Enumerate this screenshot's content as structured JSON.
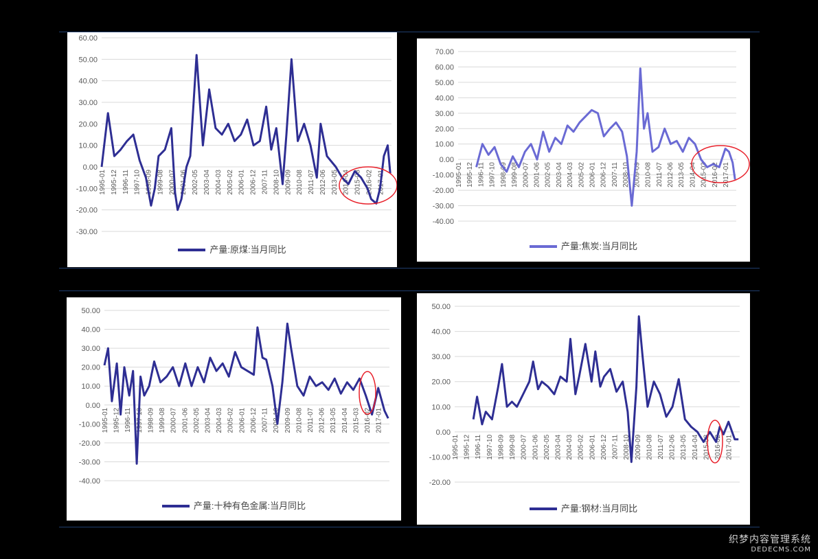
{
  "watermark": {
    "line1": "织梦内容管理系统",
    "line2": "DEDECMS.COM"
  },
  "chart_data": [
    {
      "type": "line",
      "series": [
        {
          "name": "产量:原煤:当月同比",
          "color": "#2e2e93",
          "x": [
            1995.0,
            1995.5,
            1996.0,
            1996.5,
            1997.0,
            1997.5,
            1998.0,
            1998.5,
            1998.9,
            1999.2,
            1999.5,
            2000.0,
            2000.5,
            2000.8,
            2001.0,
            2001.3,
            2001.7,
            2002.0,
            2002.5,
            2003.0,
            2003.5,
            2004.0,
            2004.5,
            2005.0,
            2005.5,
            2006.0,
            2006.5,
            2007.0,
            2007.5,
            2008.0,
            2008.4,
            2008.8,
            2009.3,
            2009.6,
            2010.0,
            2010.5,
            2011.0,
            2011.5,
            2012.0,
            2012.3,
            2012.8,
            2013.5,
            2014.0,
            2014.5,
            2015.0,
            2015.5,
            2016.0,
            2016.3,
            2016.7,
            2017.0,
            2017.3,
            2017.6,
            2017.8
          ],
          "y": [
            0,
            25,
            5,
            8,
            12,
            15,
            3,
            -5,
            -18,
            -10,
            5,
            8,
            18,
            -12,
            -20,
            -15,
            0,
            5,
            52,
            10,
            36,
            18,
            15,
            20,
            12,
            15,
            22,
            10,
            12,
            28,
            8,
            18,
            -8,
            15,
            50,
            12,
            20,
            10,
            -5,
            20,
            5,
            0,
            -5,
            -8,
            -2,
            -5,
            -10,
            -15,
            -17,
            -10,
            5,
            10,
            -3
          ]
        }
      ],
      "yticks": [
        "60.00",
        "50.00",
        "40.00",
        "30.00",
        "20.00",
        "10.00",
        "0.00",
        "-10.00",
        "-20.00",
        "-30.00"
      ],
      "xticks": [
        "1995-01",
        "1995-12",
        "1996-11",
        "1997-10",
        "1998-09",
        "1999-08",
        "2000-07",
        "2001-06",
        "2002-05",
        "2003-04",
        "2004-03",
        "2005-02",
        "2006-01",
        "2006-12",
        "2007-11",
        "2008-10",
        "2009-09",
        "2010-08",
        "2011-07",
        "2012-06",
        "2013-05",
        "2014-04",
        "2015-03",
        "2016-02",
        "2017-01"
      ],
      "ylim": [
        -30,
        60
      ],
      "annotation": "red-ellipse"
    },
    {
      "type": "line",
      "series": [
        {
          "name": "产量:焦炭:当月同比",
          "color": "#6a6ad4",
          "x": [
            1996.5,
            1997.0,
            1997.5,
            1998.0,
            1998.5,
            1999.0,
            1999.5,
            2000.0,
            2000.5,
            2001.0,
            2001.5,
            2002.0,
            2002.5,
            2003.0,
            2003.5,
            2004.0,
            2004.5,
            2005.0,
            2005.5,
            2006.0,
            2006.5,
            2007.0,
            2007.5,
            2008.0,
            2008.5,
            2008.9,
            2009.3,
            2009.7,
            2010.0,
            2010.3,
            2010.6,
            2011.0,
            2011.5,
            2012.0,
            2012.5,
            2013.0,
            2013.5,
            2014.0,
            2014.5,
            2015.0,
            2015.5,
            2016.0,
            2016.5,
            2017.0,
            2017.3,
            2017.6,
            2017.8
          ],
          "y": [
            -5,
            10,
            3,
            8,
            -3,
            -8,
            2,
            -5,
            5,
            10,
            0,
            18,
            5,
            14,
            10,
            22,
            18,
            24,
            28,
            32,
            30,
            15,
            20,
            24,
            18,
            2,
            -30,
            5,
            59,
            20,
            30,
            5,
            8,
            20,
            10,
            12,
            5,
            14,
            10,
            0,
            -5,
            -3,
            -5,
            7,
            5,
            -2,
            -13
          ]
        }
      ],
      "yticks": [
        "70.00",
        "60.00",
        "50.00",
        "40.00",
        "30.00",
        "20.00",
        "10.00",
        "0.00",
        "-10.00",
        "-20.00",
        "-30.00",
        "-40.00"
      ],
      "xticks": [
        "1995-01",
        "1995-12",
        "1996-11",
        "1997-10",
        "1998-09",
        "1999-08",
        "2000-07",
        "2001-06",
        "2002-05",
        "2003-04",
        "2004-03",
        "2005-02",
        "2006-01",
        "2006-12",
        "2007-11",
        "2008-10",
        "2009-09",
        "2010-08",
        "2011-07",
        "2012-06",
        "2013-05",
        "2014-04",
        "2015-03",
        "2016-02",
        "2017-01"
      ],
      "ylim": [
        -40,
        70
      ],
      "annotation": "red-ellipse"
    },
    {
      "type": "line",
      "series": [
        {
          "name": "产量:十种有色金属:当月同比",
          "color": "#2e2e93",
          "x": [
            1995.0,
            1995.3,
            1995.6,
            1996.0,
            1996.3,
            1996.6,
            1997.0,
            1997.3,
            1997.6,
            1997.9,
            1998.2,
            1998.6,
            1999.0,
            1999.5,
            2000.0,
            2000.5,
            2001.0,
            2001.5,
            2002.0,
            2002.5,
            2003.0,
            2003.5,
            2004.0,
            2004.5,
            2005.0,
            2005.5,
            2006.0,
            2006.5,
            2007.0,
            2007.3,
            2007.7,
            2008.0,
            2008.5,
            2008.9,
            2009.3,
            2009.7,
            2010.0,
            2010.5,
            2011.0,
            2011.5,
            2012.0,
            2012.5,
            2013.0,
            2013.5,
            2014.0,
            2014.5,
            2015.0,
            2015.5,
            2016.0,
            2016.5,
            2017.0,
            2017.5,
            2017.8
          ],
          "y": [
            21,
            30,
            2,
            22,
            -5,
            20,
            5,
            18,
            -31,
            15,
            5,
            10,
            23,
            12,
            15,
            20,
            10,
            22,
            10,
            20,
            12,
            25,
            18,
            22,
            15,
            28,
            20,
            18,
            16,
            41,
            25,
            24,
            10,
            -10,
            12,
            43,
            30,
            10,
            5,
            15,
            10,
            12,
            8,
            14,
            6,
            12,
            8,
            14,
            5,
            -5,
            9,
            -3,
            -7
          ]
        }
      ],
      "yticks": [
        "50.00",
        "40.00",
        "30.00",
        "20.00",
        "10.00",
        "0.00",
        "-10.00",
        "-20.00",
        "-30.00",
        "-40.00"
      ],
      "xticks": [
        "1995-01",
        "1995-12",
        "1996-11",
        "1997-10",
        "1998-09",
        "1999-08",
        "2000-07",
        "2001-06",
        "2002-05",
        "2003-04",
        "2004-03",
        "2005-02",
        "2006-01",
        "2006-12",
        "2007-11",
        "2008-10",
        "2009-09",
        "2010-08",
        "2011-07",
        "2012-06",
        "2013-05",
        "2014-04",
        "2015-03",
        "2016-02",
        "2017-01"
      ],
      "ylim": [
        -40,
        50
      ],
      "annotation": "red-ellipse"
    },
    {
      "type": "line",
      "series": [
        {
          "name": "产量:钢材:当月同比",
          "color": "#2e2e93",
          "x": [
            1996.5,
            1996.8,
            1997.2,
            1997.5,
            1998.0,
            1998.5,
            1998.8,
            1999.2,
            1999.6,
            2000.0,
            2000.5,
            2001.0,
            2001.3,
            2001.7,
            2002.0,
            2002.5,
            2003.0,
            2003.5,
            2004.0,
            2004.3,
            2004.7,
            2005.0,
            2005.5,
            2006.0,
            2006.3,
            2006.7,
            2007.0,
            2007.5,
            2008.0,
            2008.5,
            2008.9,
            2009.2,
            2009.6,
            2009.8,
            2010.1,
            2010.5,
            2011.0,
            2011.5,
            2012.0,
            2012.5,
            2013.0,
            2013.5,
            2014.0,
            2014.5,
            2015.0,
            2015.5,
            2016.0,
            2016.3,
            2016.6,
            2017.0,
            2017.5,
            2017.8
          ],
          "y": [
            5,
            14,
            3,
            8,
            5,
            18,
            27,
            10,
            12,
            10,
            15,
            20,
            28,
            17,
            20,
            18,
            15,
            22,
            20,
            37,
            15,
            22,
            35,
            20,
            32,
            18,
            22,
            25,
            16,
            20,
            8,
            -12,
            18,
            46,
            30,
            10,
            20,
            15,
            6,
            10,
            21,
            5,
            2,
            0,
            -4,
            0,
            -4,
            2,
            -1,
            4,
            -3,
            -3
          ]
        }
      ],
      "yticks": [
        "50.00",
        "40.00",
        "30.00",
        "20.00",
        "10.00",
        "0.00",
        "-10.00",
        "-20.00"
      ],
      "xticks": [
        "1995-01",
        "1995-12",
        "1996-11",
        "1997-10",
        "1998-09",
        "1999-08",
        "2000-07",
        "2001-06",
        "2002-05",
        "2003-04",
        "2004-03",
        "2005-02",
        "2006-01",
        "2006-12",
        "2007-11",
        "2008-10",
        "2009-09",
        "2010-08",
        "2011-07",
        "2012-06",
        "2013-05",
        "2014-04",
        "2015-03",
        "2016-02",
        "2017-01"
      ],
      "ylim": [
        -20,
        50
      ],
      "annotation": "red-ellipse"
    }
  ]
}
